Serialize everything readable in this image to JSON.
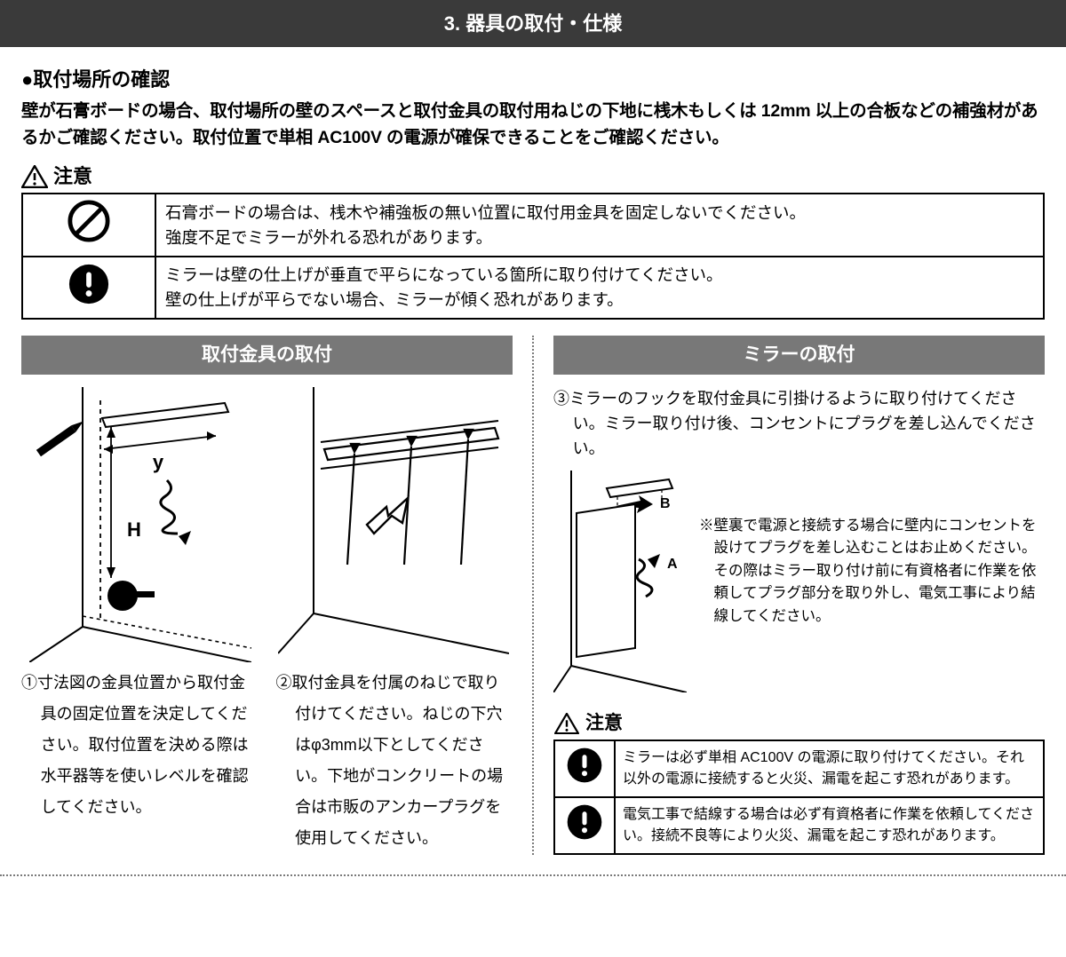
{
  "section_title": "3. 器具の取付・仕様",
  "subheading": "●取付場所の確認",
  "intro": "壁が石膏ボードの場合、取付場所の壁のスペースと取付金具の取付用ねじの下地に桟木もしくは 12mm 以上の合板などの補強材があるかご確認ください。取付位置で単相 AC100V の電源が確保できることをご確認ください。",
  "warning_label": "注意",
  "warnings": [
    {
      "icon": "prohibit",
      "text": "石膏ボードの場合は、桟木や補強板の無い位置に取付用金具を固定しないでください。\n強度不足でミラーが外れる恐れがあります。"
    },
    {
      "icon": "exclaim",
      "text": "ミラーは壁の仕上げが垂直で平らになっている箇所に取り付けてください。\n壁の仕上げが平らでない場合、ミラーが傾く恐れがあります。"
    }
  ],
  "left": {
    "header": "取付金具の取付",
    "fig1": {
      "y_label": "y",
      "h_label": "H"
    },
    "step1": "①寸法図の金具位置から取付金具の固定位置を決定してください。取付位置を決める際は水平器等を使いレベルを確認してください。",
    "step2": "②取付金具を付属のねじで取り付けてください。ねじの下穴はφ3mm以下としてください。下地がコンクリートの場合は市販のアンカープラグを使用してください。"
  },
  "right": {
    "header": "ミラーの取付",
    "step3": "③ミラーのフックを取付金具に引掛けるように取り付けてください。ミラー取り付け後、コンセントにプラグを差し込んでください。",
    "fig": {
      "label_a": "A",
      "label_b": "B"
    },
    "note": "※壁裏で電源と接続する場合に壁内にコンセントを設けてプラグを差し込むことはお止めください。その際はミラー取り付け前に有資格者に作業を依頼してプラグ部分を取り外し、電気工事により結線してください。",
    "warning_label": "注意",
    "warnings": [
      {
        "icon": "exclaim",
        "text": "ミラーは必ず単相 AC100V の電源に取り付けてください。それ以外の電源に接続すると火災、漏電を起こす恐れがあります。"
      },
      {
        "icon": "exclaim",
        "text": "電気工事で結線する場合は必ず有資格者に作業を依頼してください。接続不良等により火災、漏電を起こす恐れがあります。"
      }
    ]
  },
  "colors": {
    "section_bg": "#3a3a3a",
    "col_header_bg": "#787878",
    "border": "#000000",
    "dotted": "#7a7a7a"
  }
}
